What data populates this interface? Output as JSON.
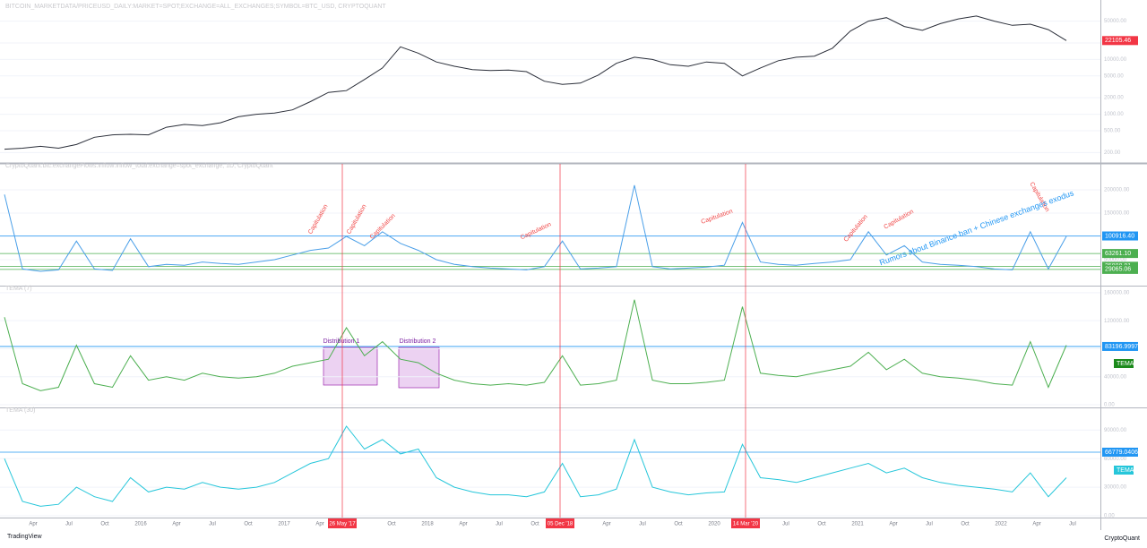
{
  "chart_data": [
    {
      "type": "line",
      "title": "BITCOIN_MARKETDATA/PRICEUSD_DAILY:MARKET=SPOT;EXCHANGE=ALL_EXCHANGES;SYMBOL=BTC_USD, CRYPTOQUANT",
      "color": "#2a2e39",
      "log_scale": true,
      "ylim": [
        150,
        90000
      ],
      "yticks": [
        200,
        500,
        1000,
        2000,
        5000,
        10000,
        20000,
        50000
      ],
      "last_label": {
        "value": 22105.46,
        "label": "22105.46",
        "color": "#f23645"
      },
      "values": [
        230,
        240,
        260,
        240,
        280,
        380,
        420,
        430,
        420,
        580,
        650,
        620,
        700,
        900,
        1000,
        1050,
        1200,
        1700,
        2500,
        2700,
        4300,
        7000,
        17000,
        13000,
        9000,
        7500,
        6500,
        6300,
        6400,
        6000,
        4000,
        3500,
        3700,
        5200,
        8500,
        11000,
        10000,
        8000,
        7500,
        9000,
        8500,
        5000,
        7000,
        9500,
        11000,
        11500,
        16000,
        33000,
        50000,
        58000,
        40000,
        34000,
        45000,
        55000,
        62000,
        50000,
        42000,
        44000,
        35000,
        22105
      ]
    },
    {
      "type": "line",
      "title": "CryptoQuant:btc:exchangeFlows:inflow:inflow_total:exchange=spot_exchange, 1D, CryptoQuant",
      "color": "#4a9fe8",
      "ylim": [
        0,
        250000
      ],
      "yticks": [
        50000,
        100000,
        150000,
        200000
      ],
      "levels": [
        {
          "value": 100916.4,
          "label": "100916.40",
          "color": "#2196f3"
        },
        {
          "value": 63261.1,
          "label": "63261.10",
          "color": "#4caf50"
        },
        {
          "value": 35888.81,
          "color": "#4caf50"
        },
        {
          "value": 29065.06,
          "color": "#4caf50"
        }
      ],
      "annotations": [
        "Capitulation",
        "Capitulation",
        "Capitulation",
        "Capitulation",
        "Capitulation",
        "Capitulation",
        "Capitulation",
        "Capitulation",
        "Rumors about Binance ban + Chinese exchanges exodus"
      ],
      "values": [
        190000,
        30000,
        25000,
        28000,
        90000,
        30000,
        27000,
        95000,
        35000,
        40000,
        38000,
        45000,
        42000,
        40000,
        45000,
        50000,
        60000,
        70000,
        75000,
        100000,
        80000,
        110000,
        85000,
        70000,
        50000,
        40000,
        35000,
        32000,
        30000,
        28000,
        35000,
        90000,
        30000,
        32000,
        35000,
        210000,
        35000,
        30000,
        32000,
        34000,
        38000,
        130000,
        45000,
        40000,
        38000,
        42000,
        45000,
        50000,
        110000,
        60000,
        80000,
        45000,
        40000,
        38000,
        35000,
        30000,
        28000,
        110000,
        30000,
        100000
      ]
    },
    {
      "type": "line",
      "title": "TEMA (7)",
      "color": "#4caf50",
      "ylim": [
        0,
        165000
      ],
      "yticks": [
        0,
        40000,
        80000,
        120000,
        160000
      ],
      "levels": [
        {
          "value": 83196.9997,
          "color": "#2196f3"
        }
      ],
      "tag": {
        "label": "TEMA",
        "color": "#1b8a1b"
      },
      "annotations": [
        "Distribution 1",
        "Distribution 2"
      ],
      "values": [
        125000,
        30000,
        20000,
        25000,
        85000,
        30000,
        25000,
        70000,
        35000,
        40000,
        35000,
        45000,
        40000,
        38000,
        40000,
        45000,
        55000,
        60000,
        65000,
        110000,
        70000,
        90000,
        65000,
        60000,
        45000,
        35000,
        30000,
        28000,
        30000,
        28000,
        32000,
        70000,
        28000,
        30000,
        35000,
        150000,
        35000,
        30000,
        30000,
        32000,
        35000,
        140000,
        45000,
        42000,
        40000,
        45000,
        50000,
        55000,
        75000,
        50000,
        65000,
        45000,
        40000,
        38000,
        35000,
        30000,
        28000,
        90000,
        25000,
        85000
      ]
    },
    {
      "type": "line",
      "title": "TEMA (30)",
      "color": "#26c6da",
      "ylim": [
        0,
        110000
      ],
      "yticks": [
        0,
        30000,
        60000,
        90000
      ],
      "levels": [
        {
          "value": 66779.0406,
          "color": "#2196f3"
        }
      ],
      "tag": {
        "label": "TEMA",
        "color": "#26c6da"
      },
      "values": [
        60000,
        15000,
        10000,
        12000,
        30000,
        20000,
        15000,
        40000,
        25000,
        30000,
        28000,
        35000,
        30000,
        28000,
        30000,
        35000,
        45000,
        55000,
        60000,
        94000,
        70000,
        80000,
        65000,
        70000,
        40000,
        30000,
        25000,
        22000,
        22000,
        20000,
        25000,
        55000,
        20000,
        22000,
        28000,
        80000,
        30000,
        25000,
        22000,
        24000,
        25000,
        75000,
        40000,
        38000,
        35000,
        40000,
        45000,
        50000,
        55000,
        45000,
        50000,
        40000,
        35000,
        32000,
        30000,
        28000,
        25000,
        45000,
        20000,
        40000
      ]
    }
  ],
  "time_axis": {
    "categories": [
      "Apr",
      "Jul",
      "Oct",
      "2016",
      "Apr",
      "Jul",
      "Oct",
      "2017",
      "Apr",
      null,
      "Oct",
      "2018",
      "Apr",
      "Jul",
      "Oct",
      null,
      "Apr",
      "Jul",
      "Oct",
      "2020",
      null,
      "Jul",
      "Oct",
      "2021",
      "Apr",
      "Jul",
      "Oct",
      "2022",
      "Apr",
      "Jul"
    ],
    "events": [
      "26 May '17",
      "05 Dec '18",
      "14 Mar '20"
    ]
  },
  "footer": {
    "brand": "TradingView",
    "source": "CryptoQuant"
  }
}
